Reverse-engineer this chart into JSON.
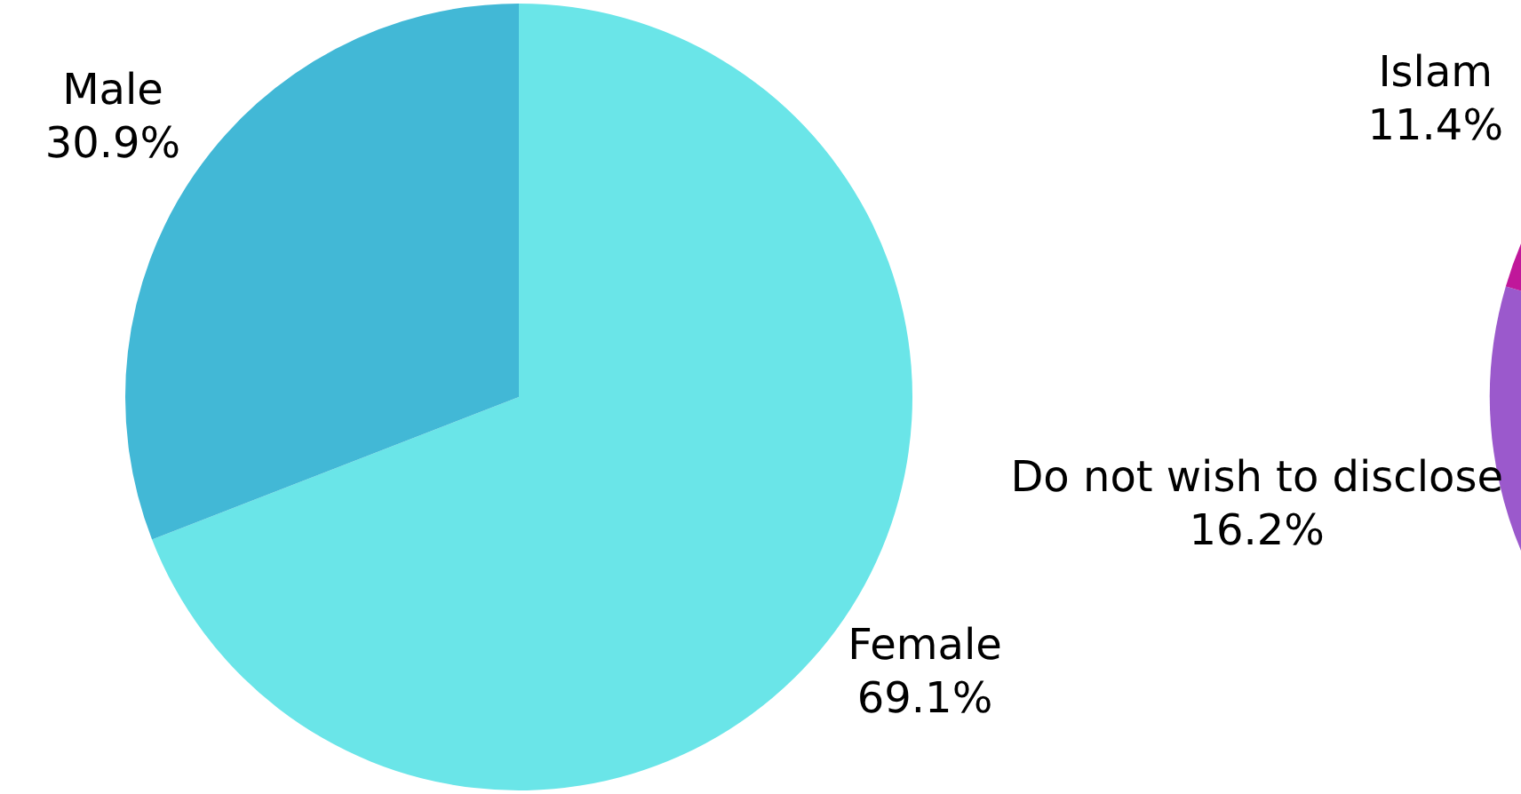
{
  "chart_data": [
    {
      "type": "pie",
      "categories": [
        "Male",
        "Female"
      ],
      "values": [
        30.9,
        69.1
      ],
      "colors": [
        "#42b8d6",
        "#6ae5e8"
      ],
      "value_labels": [
        "30.9%",
        "69.1%"
      ]
    },
    {
      "type": "pie",
      "categories": [
        "Islam",
        "Do not wish to disclose"
      ],
      "values": [
        11.4,
        16.2
      ],
      "colors": [
        "#c0179a",
        "#9b59cc"
      ],
      "value_labels": [
        "11.4%",
        "16.2%"
      ]
    }
  ]
}
